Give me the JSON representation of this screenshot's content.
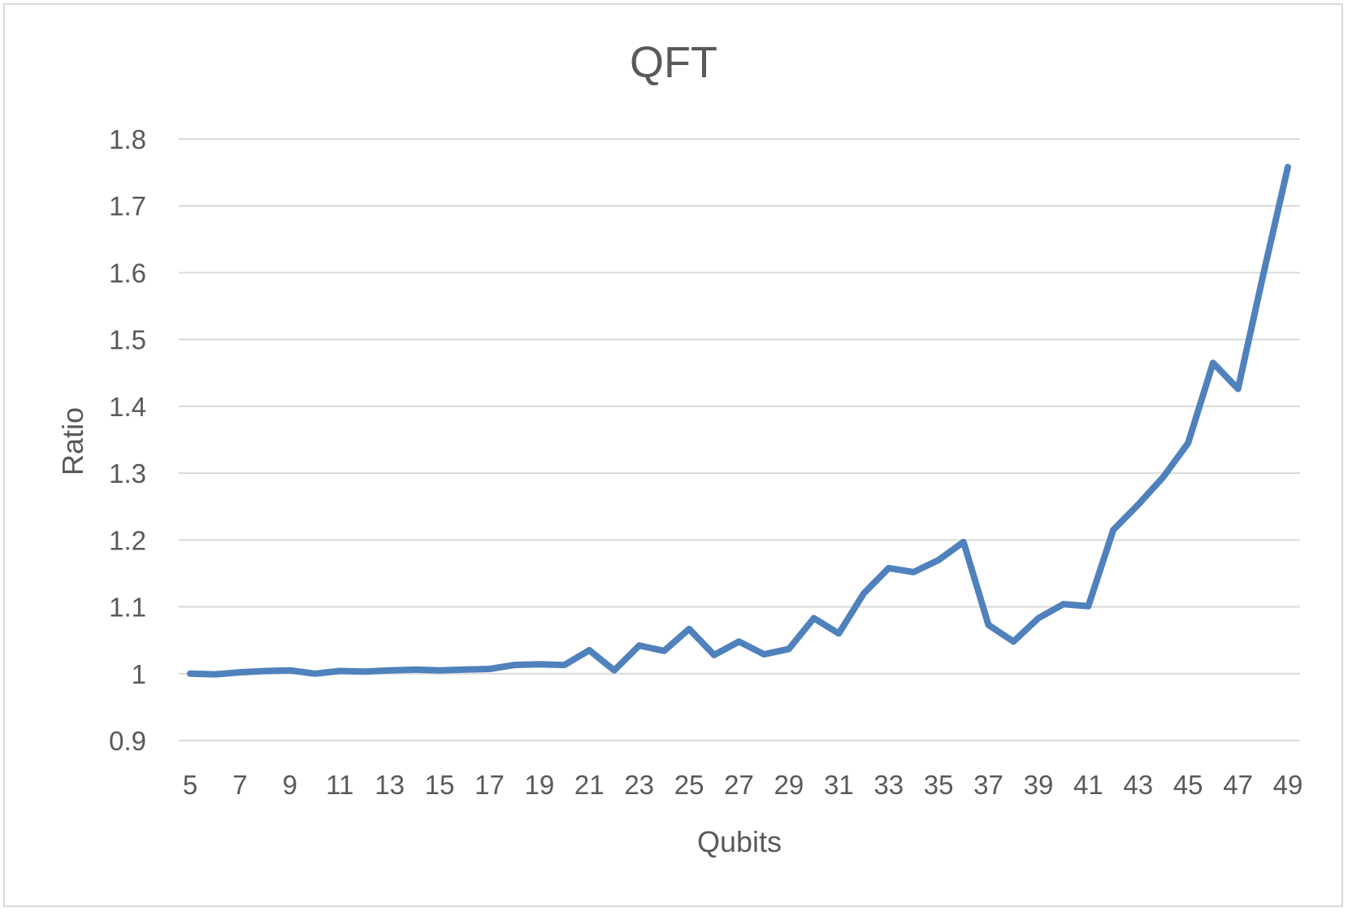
{
  "chart_data": {
    "type": "line",
    "title": "QFT",
    "xlabel": "Qubits",
    "ylabel": "Ratio",
    "ylim": [
      0.9,
      1.8
    ],
    "yticks": [
      "0.9",
      "1",
      "1.1",
      "1.2",
      "1.3",
      "1.4",
      "1.5",
      "1.6",
      "1.7",
      "1.8"
    ],
    "xticks": [
      "5",
      "7",
      "9",
      "11",
      "13",
      "15",
      "17",
      "19",
      "21",
      "23",
      "25",
      "27",
      "29",
      "31",
      "33",
      "35",
      "37",
      "39",
      "41",
      "43",
      "45",
      "47",
      "49"
    ],
    "grid": true,
    "legend": "none",
    "series": [
      {
        "color": "#4f81bd",
        "x": [
          5,
          6,
          7,
          8,
          9,
          10,
          11,
          12,
          13,
          14,
          15,
          16,
          17,
          18,
          19,
          20,
          21,
          22,
          23,
          24,
          25,
          26,
          27,
          28,
          29,
          30,
          31,
          32,
          33,
          34,
          35,
          36,
          37,
          38,
          39,
          40,
          41,
          42,
          43,
          44,
          45,
          46,
          47,
          48,
          49
        ],
        "values": [
          1.0,
          0.999,
          1.002,
          1.004,
          1.005,
          1.0,
          1.004,
          1.003,
          1.005,
          1.006,
          1.005,
          1.006,
          1.007,
          1.013,
          1.014,
          1.013,
          1.035,
          1.005,
          1.042,
          1.034,
          1.067,
          1.028,
          1.048,
          1.029,
          1.037,
          1.083,
          1.06,
          1.12,
          1.158,
          1.152,
          1.17,
          1.197,
          1.073,
          1.048,
          1.083,
          1.104,
          1.101,
          1.215,
          1.253,
          1.294,
          1.345,
          1.465,
          1.426,
          1.595,
          1.758
        ]
      }
    ]
  }
}
